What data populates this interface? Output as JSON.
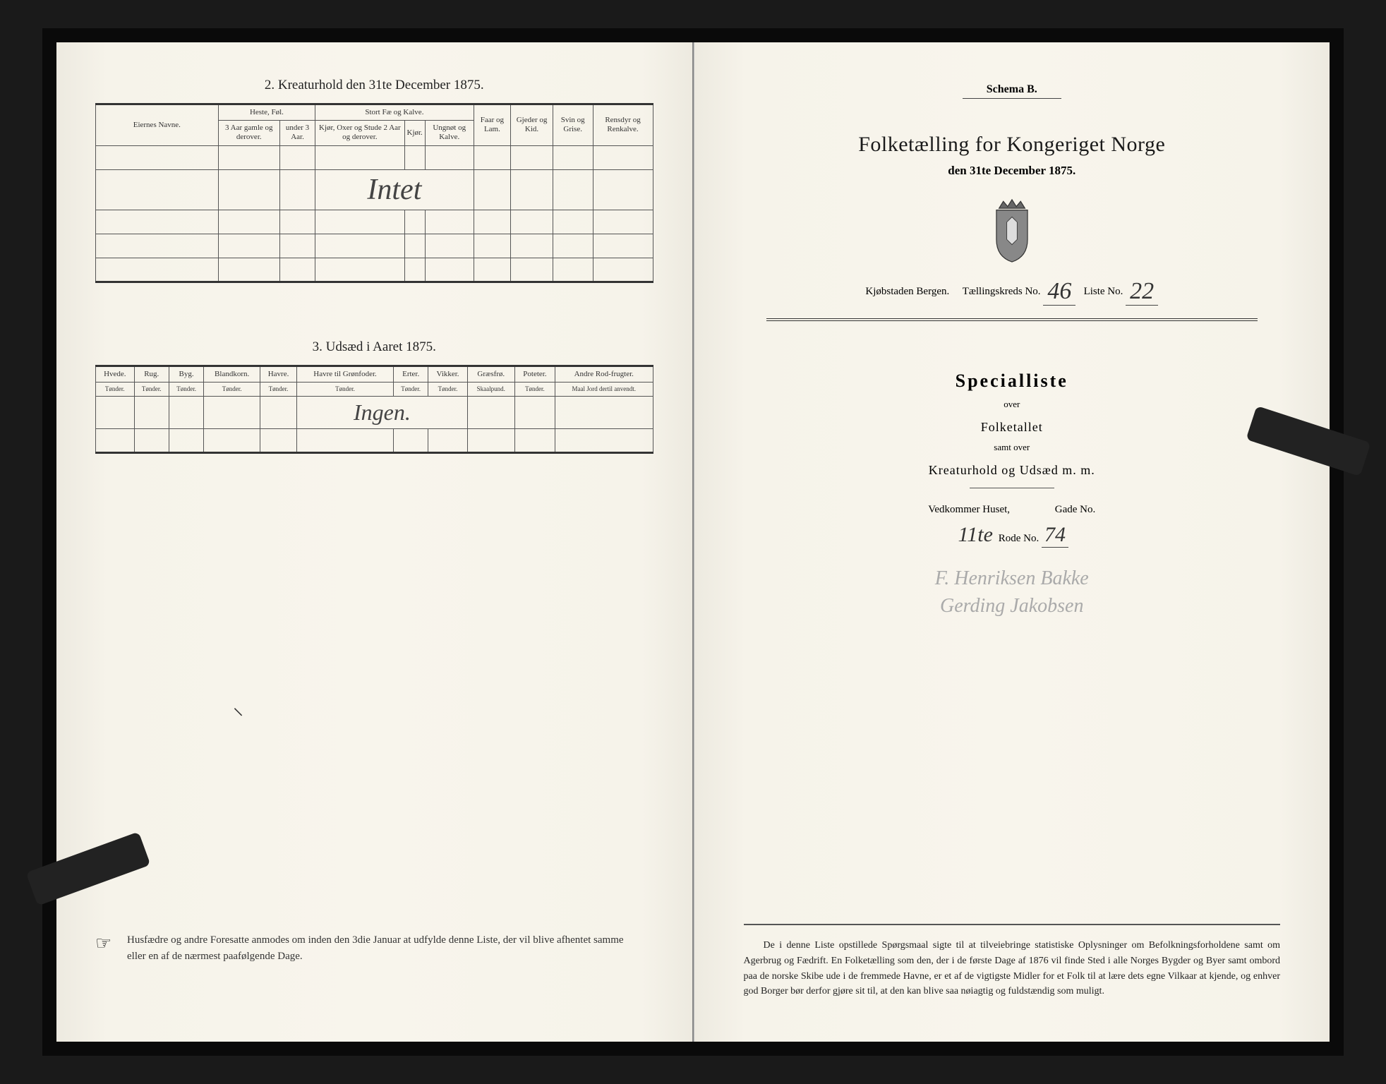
{
  "left": {
    "section2": {
      "title": "2.  Kreaturhold den 31te December 1875.",
      "group_headers": [
        "Eiernes Navne.",
        "Heste, Føl.",
        "Stort Fæ og Kalve.",
        "Faar og Lam.",
        "Gjeder og Kid.",
        "Svin og Grise.",
        "Rensdyr og Renkalve."
      ],
      "sub_headers": {
        "heste": [
          "3 Aar gamle og derover.",
          "under 3 Aar."
        ],
        "fae": [
          "Kjør, Oxer og Stude 2 Aar og derover.",
          "Kjør.",
          "Ungnøt og Kalve."
        ]
      },
      "handwritten": "Intet"
    },
    "section3": {
      "title": "3.  Udsæd i Aaret 1875.",
      "cols": [
        {
          "h": "Hvede.",
          "u": "Tønder."
        },
        {
          "h": "Rug.",
          "u": "Tønder."
        },
        {
          "h": "Byg.",
          "u": "Tønder."
        },
        {
          "h": "Blandkorn.",
          "u": "Tønder."
        },
        {
          "h": "Havre.",
          "u": "Tønder."
        },
        {
          "h": "Havre til Grønfoder.",
          "u": "Tønder."
        },
        {
          "h": "Erter.",
          "u": "Tønder."
        },
        {
          "h": "Vikker.",
          "u": "Tønder."
        },
        {
          "h": "Græsfrø.",
          "u": "Skaalpund."
        },
        {
          "h": "Poteter.",
          "u": "Tønder."
        },
        {
          "h": "Andre Rod-frugter.",
          "u": "Maal Jord dertil anvendt."
        }
      ],
      "handwritten": "Ingen."
    },
    "footnote": "Husfædre og andre Foresatte anmodes om inden den 3die Januar at udfylde denne Liste, der vil blive afhentet samme eller en af de nærmest paafølgende Dage.",
    "hand_glyph": "☞"
  },
  "right": {
    "schema": "Schema B.",
    "title": "Folketælling for Kongeriget Norge",
    "date": "den 31te December 1875.",
    "town_label": "Kjøbstaden Bergen.",
    "kreds_label": "Tællingskreds No.",
    "kreds_no": "46",
    "liste_label": "Liste No.",
    "liste_no": "22",
    "spec_title": "Specialliste",
    "spec_over": "over",
    "spec_folketallet": "Folketallet",
    "spec_samt": "samt over",
    "spec_kreatur": "Kreaturhold og Udsæd m. m.",
    "hus_label": "Vedkommer Huset,",
    "gade_label": "Gade No.",
    "rode_no_prefix": "11te",
    "rode_label": "Rode No.",
    "rode_no": "74",
    "sig1": "F. Henriksen Bakke",
    "sig2": "Gerding Jakobsen",
    "bottom": "De i denne Liste opstillede Spørgsmaal sigte til at tilveiebringe statistiske Oplysninger om Befolkningsforholdene samt om Agerbrug og Fædrift.  En Folketælling som den, der i de første Dage af 1876 vil finde Sted i alle Norges Bygder og Byer samt ombord paa de norske Skibe ude i de fremmede Havne, er et af de vigtigste Midler for et Folk til at lære dets egne Vilkaar at kjende, og enhver god Borger bør derfor gjøre sit til, at den kan blive saa nøiagtig og fuldstændig som muligt."
  },
  "colors": {
    "paper": "#f6f3ea",
    "ink": "#222222",
    "frame": "#0a0a0a",
    "rule": "#555555"
  }
}
